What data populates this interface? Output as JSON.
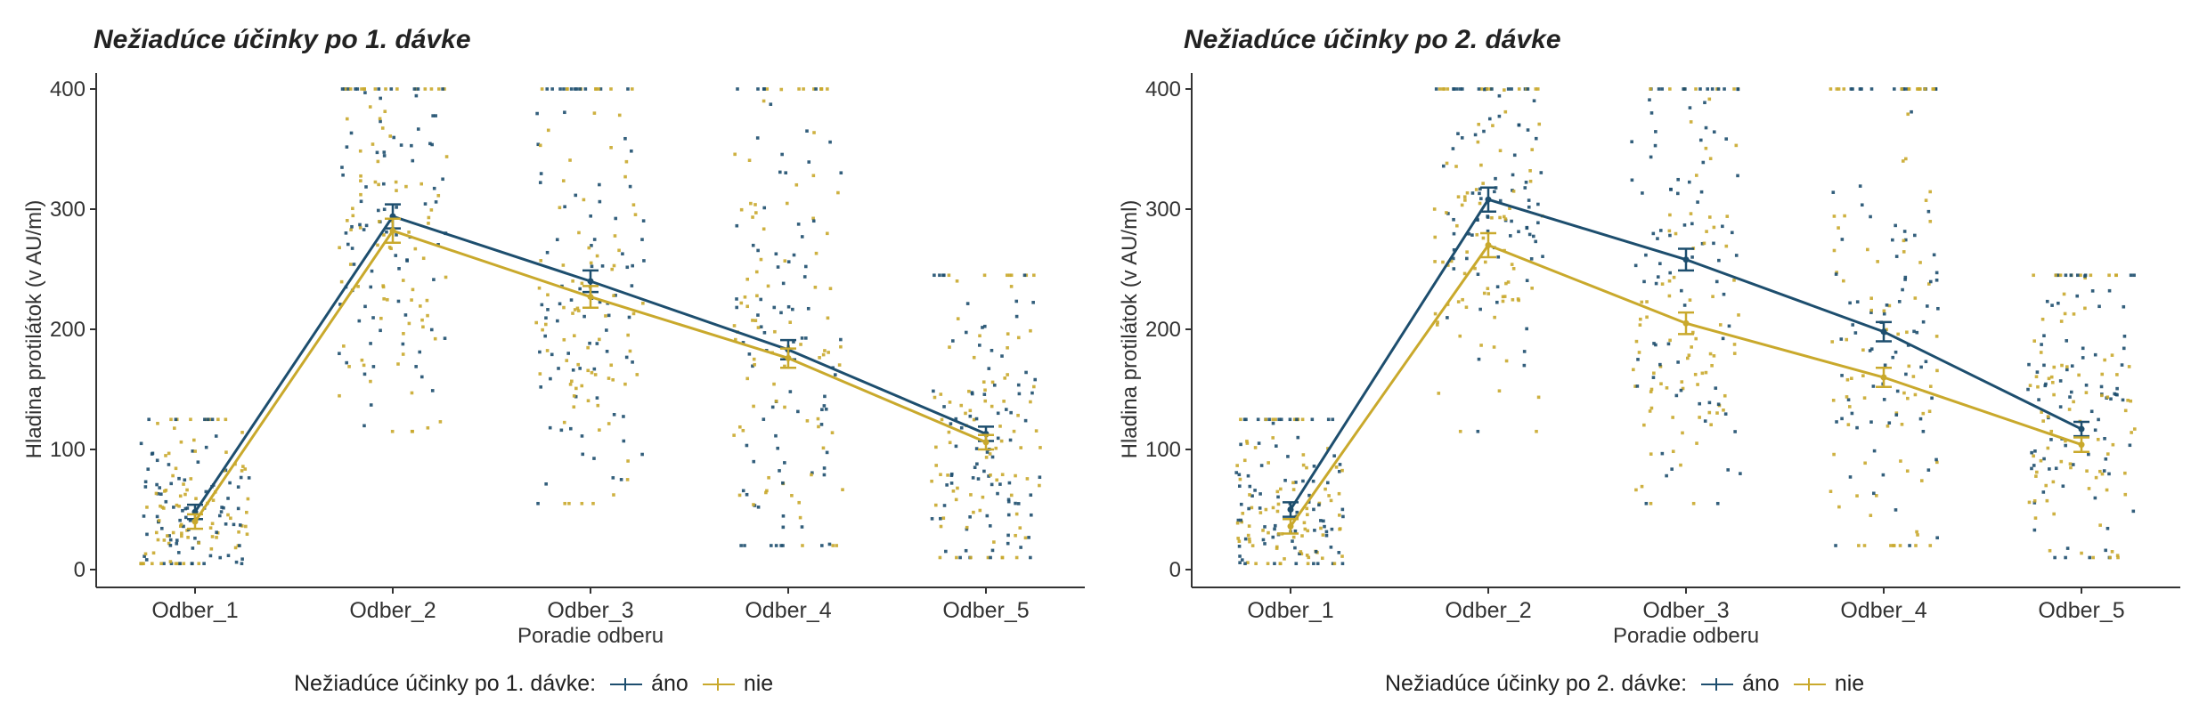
{
  "chart_data": [
    {
      "type": "line",
      "title": "Nežiadúce účinky po 1. dávke",
      "xlabel": "Poradie odberu",
      "ylabel": "Hladina protilátok (v AU/ml)",
      "categories": [
        "Odber_1",
        "Odber_2",
        "Odber_3",
        "Odber_4",
        "Odber_5"
      ],
      "ylim": [
        0,
        400
      ],
      "yticks": [
        0,
        100,
        200,
        300,
        400
      ],
      "legend_title": "Nežiadúce účinky po 1. dávke:",
      "legend_position": "bottom",
      "series": [
        {
          "name": "áno",
          "color": "#1d4e6e",
          "values": [
            48,
            294,
            240,
            183,
            113
          ],
          "error": [
            6,
            10,
            9,
            8,
            6
          ]
        },
        {
          "name": "nie",
          "color": "#c9a92c",
          "values": [
            40,
            282,
            227,
            176,
            106
          ],
          "error": [
            6,
            10,
            9,
            8,
            6
          ]
        }
      ]
    },
    {
      "type": "line",
      "title": "Nežiadúce účinky po 2. dávke",
      "xlabel": "Poradie odberu",
      "ylabel": "Hladina protilátok (v AU/ml)",
      "categories": [
        "Odber_1",
        "Odber_2",
        "Odber_3",
        "Odber_4",
        "Odber_5"
      ],
      "ylim": [
        0,
        400
      ],
      "yticks": [
        0,
        100,
        200,
        300,
        400
      ],
      "legend_title": "Nežiadúce účinky po 2. dávke:",
      "legend_position": "bottom",
      "series": [
        {
          "name": "áno",
          "color": "#1d4e6e",
          "values": [
            50,
            308,
            258,
            198,
            117
          ],
          "error": [
            6,
            10,
            9,
            8,
            6
          ]
        },
        {
          "name": "nie",
          "color": "#c9a92c",
          "values": [
            36,
            270,
            205,
            160,
            104
          ],
          "error": [
            6,
            10,
            9,
            8,
            6
          ]
        }
      ]
    }
  ]
}
